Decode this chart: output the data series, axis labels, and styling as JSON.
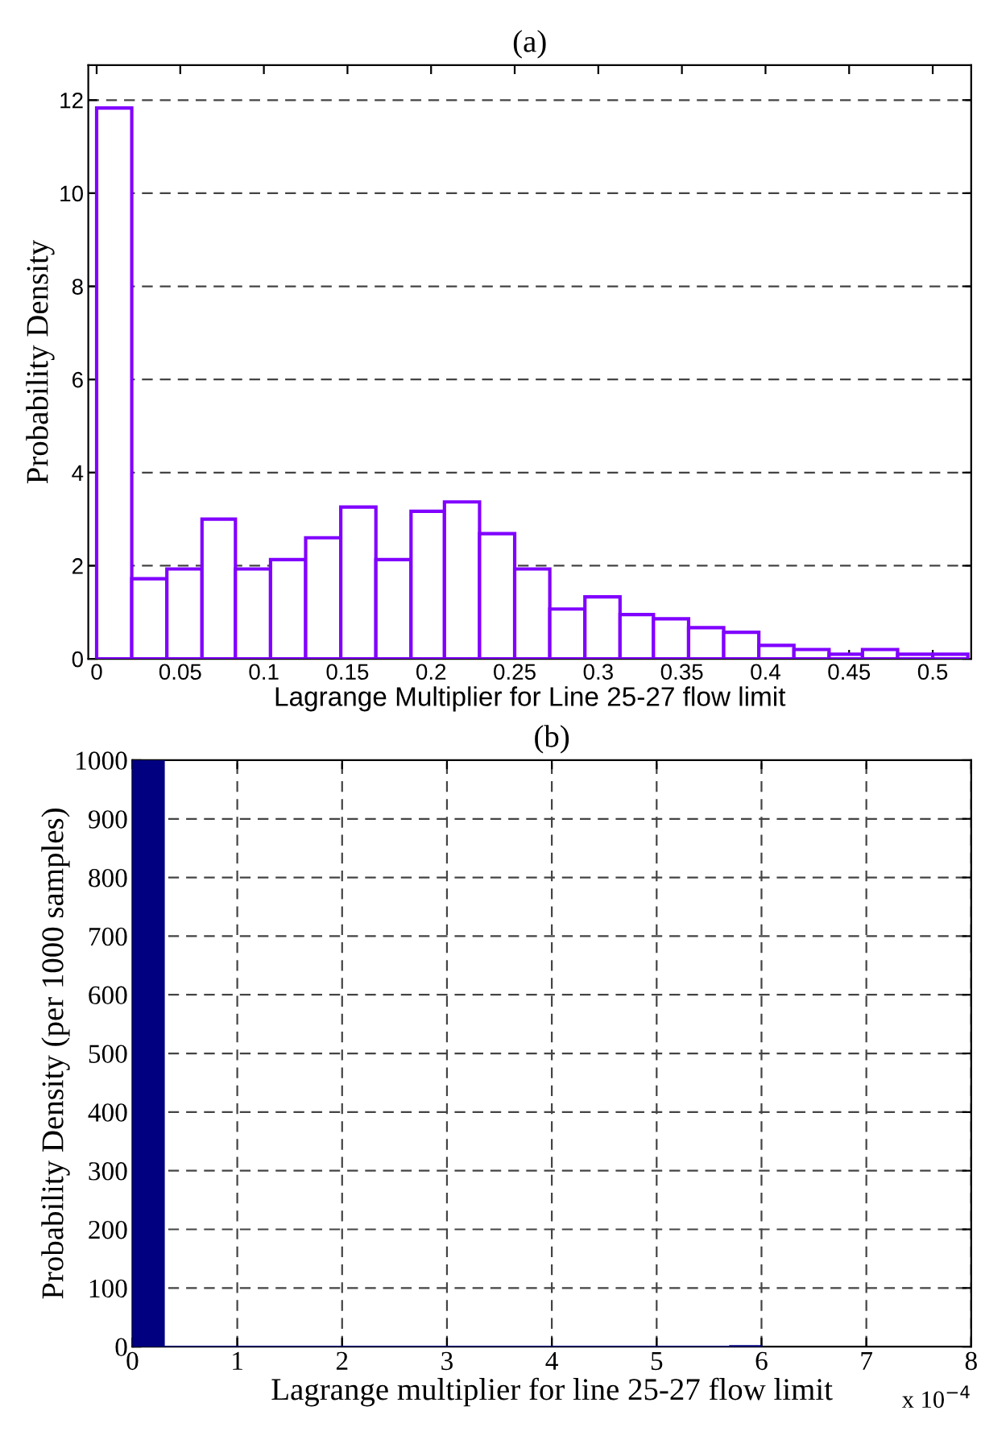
{
  "chart_data": [
    {
      "type": "histogram",
      "title": "(a)",
      "xlabel": "Lagrange Multiplier for Line 25-27 flow limit",
      "ylabel": "Probability Density",
      "bins": [
        0,
        0.021,
        0.042,
        0.063,
        0.083,
        0.104,
        0.125,
        0.146,
        0.167,
        0.188,
        0.208,
        0.229,
        0.25,
        0.271,
        0.292,
        0.313,
        0.333,
        0.354,
        0.375,
        0.396,
        0.417,
        0.438,
        0.458,
        0.479,
        0.5,
        0.521
      ],
      "series": [
        {
          "color": "#8000ff",
          "values": [
            11.83,
            1.72,
            1.93,
            3.0,
            1.93,
            2.13,
            2.6,
            3.26,
            2.13,
            3.17,
            3.37,
            2.69,
            1.93,
            1.07,
            1.33,
            0.95,
            0.86,
            0.67,
            0.57,
            0.29,
            0.2,
            0.1,
            0.2,
            0.1,
            0.1
          ]
        }
      ],
      "xlim": [
        -0.005,
        0.523
      ],
      "ylim": [
        0,
        12.75
      ],
      "xticks": [
        0,
        0.05,
        0.1,
        0.15,
        0.2,
        0.25,
        0.3,
        0.35,
        0.4,
        0.45,
        0.5
      ],
      "yticks": [
        0,
        2,
        4,
        6,
        8,
        10,
        12
      ],
      "grid": "y"
    },
    {
      "type": "histogram",
      "title": "(b)",
      "xlabel": "Lagrange multiplier for line 25-27 flow limit",
      "ylabel": "Probability Density (per 1000 samples)",
      "annotations": [
        "x 10$^{−4}$"
      ],
      "bins": [
        0,
        0.3,
        0.6,
        0.9,
        1.2,
        1.5,
        1.8,
        2.1,
        2.4,
        2.7,
        3.0,
        3.3,
        3.6,
        3.9,
        4.2,
        4.5,
        4.8,
        5.1,
        5.4,
        5.7,
        6.0
      ],
      "series": [
        {
          "color": "#000080",
          "values": [
            999,
            0,
            0,
            0,
            0,
            0,
            0,
            0,
            0,
            0,
            0,
            0,
            0,
            0,
            0,
            0,
            0,
            0,
            0,
            1
          ]
        }
      ],
      "xlim": [
        0,
        8
      ],
      "ylim": [
        0,
        1000
      ],
      "xticks": [
        0,
        1,
        2,
        3,
        4,
        5,
        6,
        7,
        8
      ],
      "yticks": [
        0,
        100,
        200,
        300,
        400,
        500,
        600,
        700,
        800,
        900,
        1000
      ],
      "grid": true
    }
  ]
}
